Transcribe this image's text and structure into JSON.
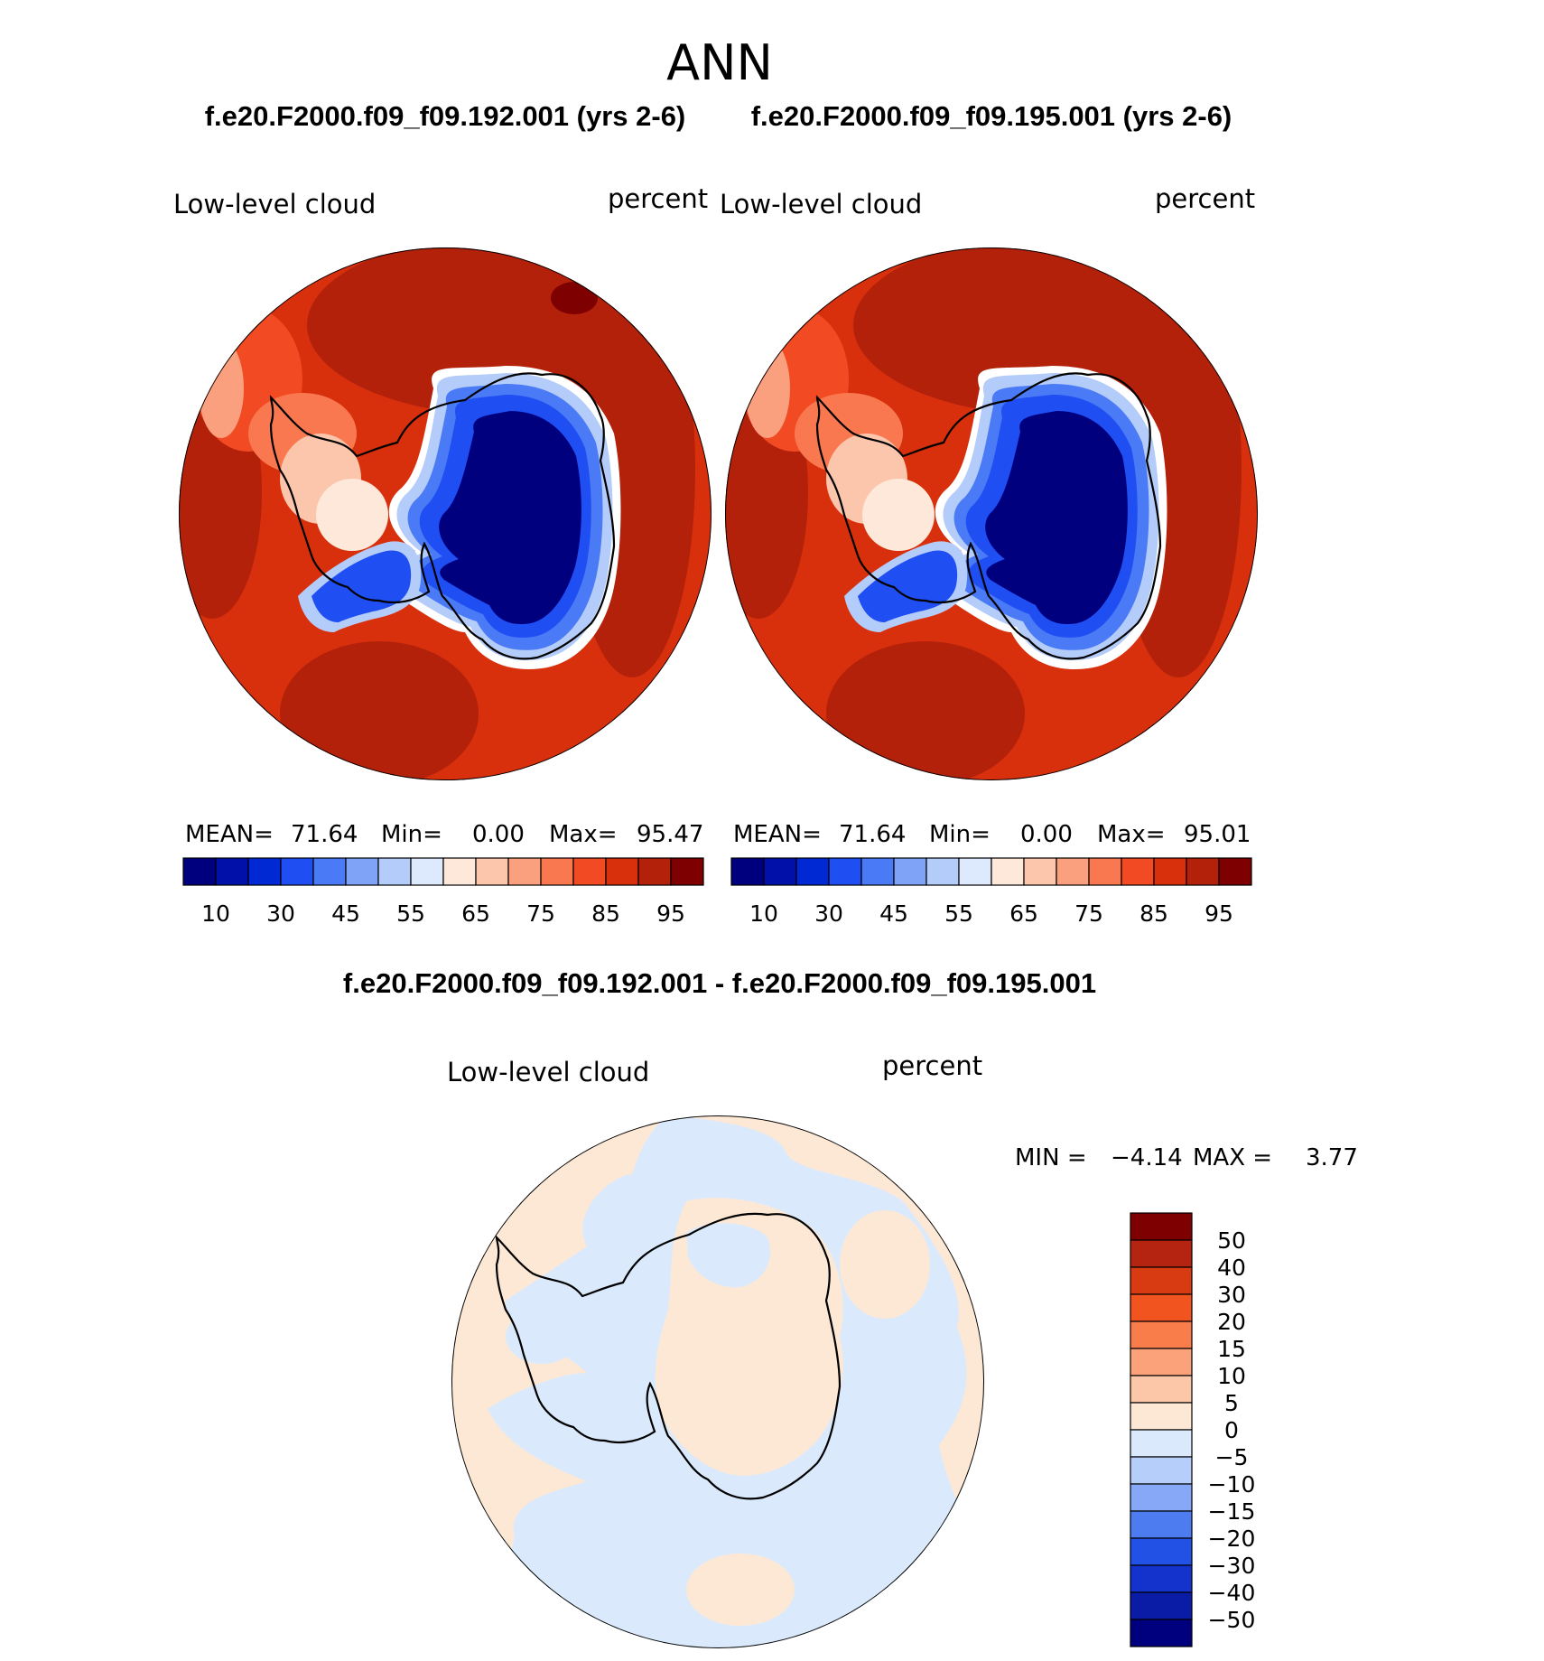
{
  "page": {
    "season": "ANN",
    "case1_title": "f.e20.F2000.f09_f09.192.001 (yrs 2-6)",
    "case2_title": "f.e20.F2000.f09_f09.195.001 (yrs 2-6)",
    "diff_title": "f.e20.F2000.f09_f09.192.001 - f.e20.F2000.f09_f09.195.001"
  },
  "colors": {
    "abs_levels": [
      "#00007f",
      "#0010a8",
      "#0029d4",
      "#1f4ef2",
      "#4a7af5",
      "#7fa4f7",
      "#b4ccfa",
      "#dde9fc",
      "#fde8da",
      "#fcc6ad",
      "#fba07e",
      "#f97850",
      "#f24a22",
      "#d8300d",
      "#b3210a",
      "#7f0000"
    ],
    "diff_levels": [
      "#00007f",
      "#0a1ca5",
      "#1433cc",
      "#2251e6",
      "#4d7cf0",
      "#87a8f6",
      "#b6cefa",
      "#daeafc",
      "#fde8d6",
      "#fcc7a9",
      "#fba27a",
      "#f97c4b",
      "#f25420",
      "#d83a12",
      "#b52410",
      "#7f0000"
    ]
  },
  "chart_data": [
    {
      "type": "heatmap",
      "panel": "case1",
      "projection": "south-polar-stereographic",
      "left_label": "Low-level cloud",
      "right_label": "percent",
      "stats": {
        "mean_label": "MEAN=",
        "mean": "71.64",
        "min_label": "Min=",
        "min": "0.00",
        "max_label": "Max=",
        "max": "95.47"
      },
      "colorbar": {
        "orientation": "horizontal",
        "tick_labels": [
          "10",
          "30",
          "45",
          "55",
          "65",
          "75",
          "85",
          "95"
        ]
      }
    },
    {
      "type": "heatmap",
      "panel": "case2",
      "projection": "south-polar-stereographic",
      "left_label": "Low-level cloud",
      "right_label": "percent",
      "stats": {
        "mean_label": "MEAN=",
        "mean": "71.64",
        "min_label": "Min=",
        "min": "0.00",
        "max_label": "Max=",
        "max": "95.01"
      },
      "colorbar": {
        "orientation": "horizontal",
        "tick_labels": [
          "10",
          "30",
          "45",
          "55",
          "65",
          "75",
          "85",
          "95"
        ]
      }
    },
    {
      "type": "heatmap",
      "panel": "difference",
      "projection": "south-polar-stereographic",
      "left_label": "Low-level cloud",
      "right_label": "percent",
      "stats": {
        "min_label": "MIN =",
        "min": "−4.14",
        "max_label": "MAX =",
        "max": "3.77"
      },
      "colorbar": {
        "orientation": "vertical",
        "tick_labels": [
          "50",
          "40",
          "30",
          "20",
          "15",
          "10",
          "5",
          "0",
          "−5",
          "−10",
          "−15",
          "−20",
          "−30",
          "−40",
          "−50"
        ]
      }
    }
  ]
}
